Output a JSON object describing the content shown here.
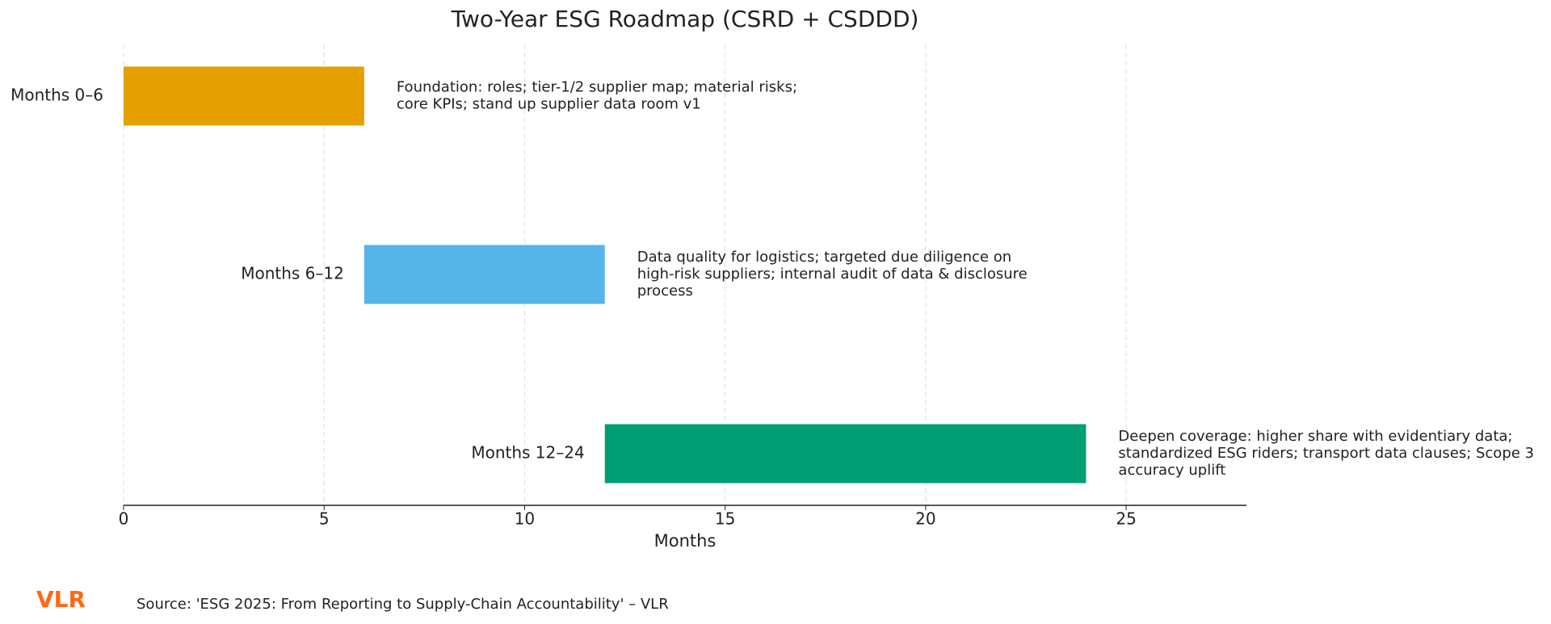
{
  "chart_data": {
    "type": "gantt",
    "title": "Two-Year ESG Roadmap (CSRD + CSDDD)",
    "x_label": "Months",
    "xlim": [
      0,
      28
    ],
    "xticks": [
      0,
      5,
      10,
      15,
      20,
      25
    ],
    "grid": true,
    "tasks": [
      {
        "name": "Months 0–6",
        "start": 0,
        "end": 6,
        "color": "#e69f00",
        "note": [
          "Foundation: roles; tier-1/2 supplier map; material risks;",
          "core KPIs; stand up supplier data room v1"
        ]
      },
      {
        "name": "Months 6–12",
        "start": 6,
        "end": 12,
        "color": "#56b4e9",
        "note": [
          "Data quality for logistics; targeted due diligence on",
          "high-risk suppliers; internal audit of data & disclosure",
          "process"
        ]
      },
      {
        "name": "Months 12–24",
        "start": 12,
        "end": 24,
        "color": "#009e73",
        "note": [
          "Deepen coverage: higher share with evidentiary data;",
          "standardized ESG riders; transport data clauses; Scope 3",
          "accuracy uplift"
        ]
      }
    ]
  },
  "footer": {
    "logo": "VLR",
    "source": "Source: 'ESG 2025: From Reporting to Supply-Chain Accountability' – VLR"
  }
}
